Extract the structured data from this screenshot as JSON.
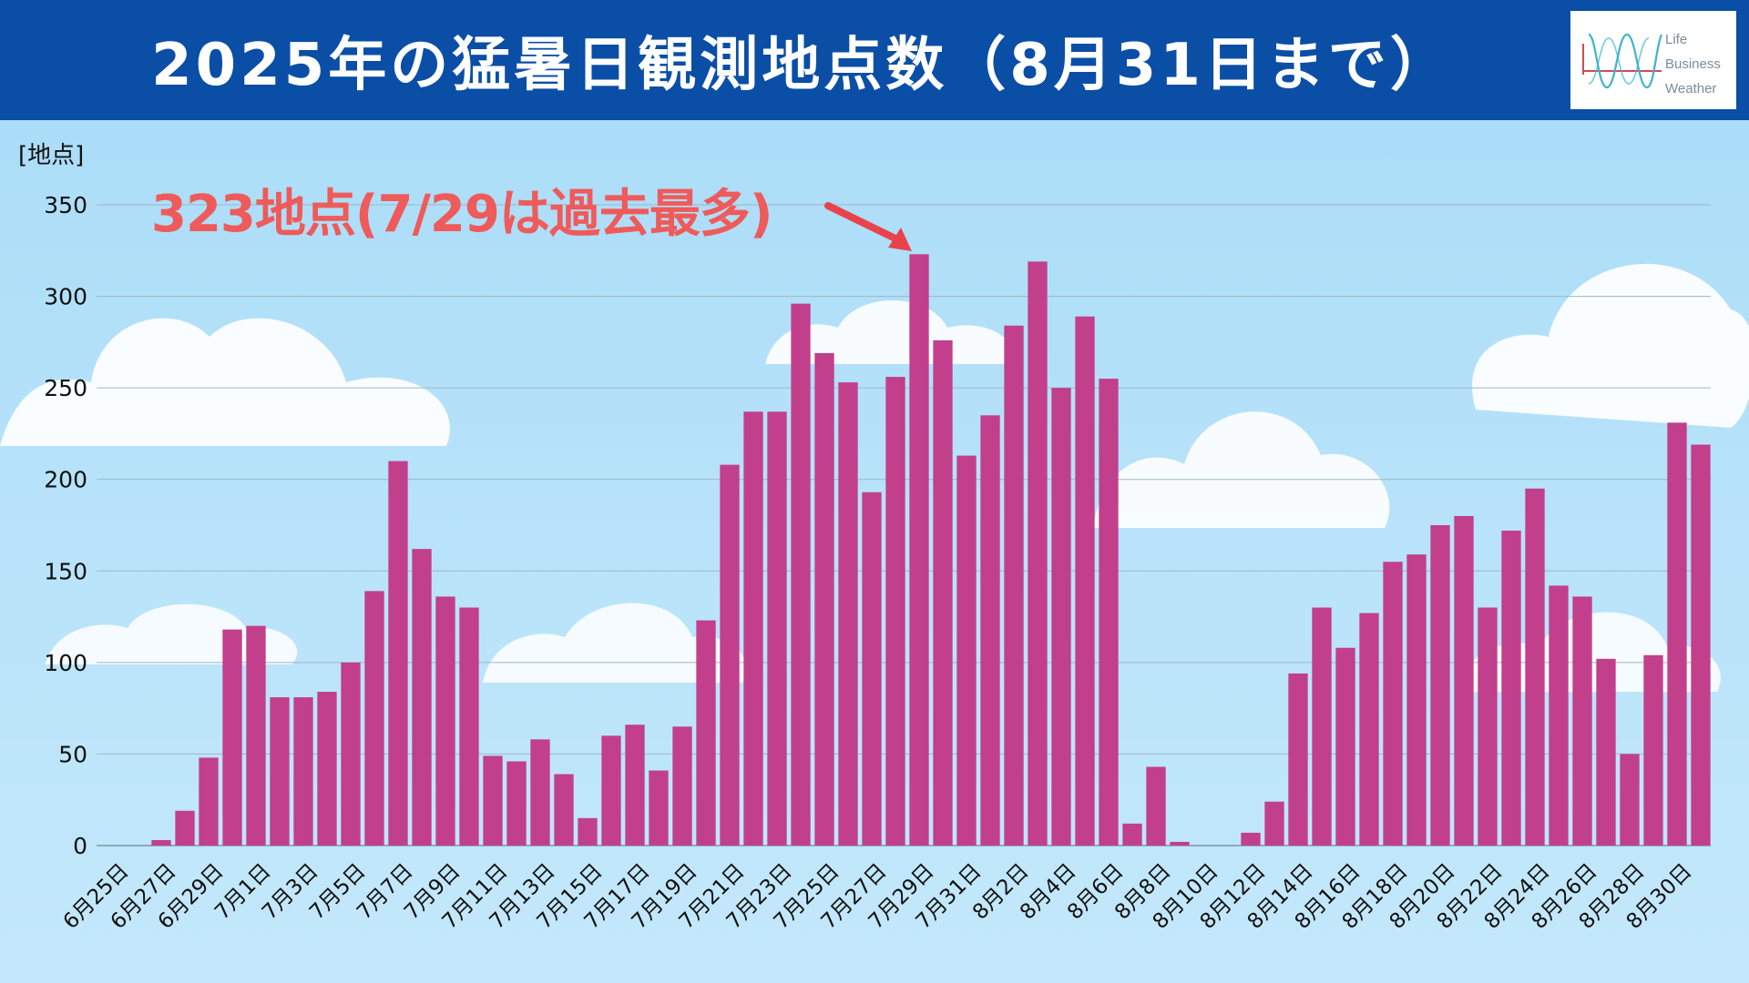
{
  "header": {
    "title": "2025年の猛暑日観測地点数（8月31日まで）",
    "background": "#0b4ea6"
  },
  "logo": {
    "lines": [
      "Life",
      "Business",
      "Weather"
    ]
  },
  "annotation": {
    "text": "323地点(7/29は過去最多)",
    "color": "#ef5a5a"
  },
  "chart_data": {
    "type": "bar",
    "unit_label": "[地点]",
    "bar_color": "#c23f8c",
    "ylim": [
      0,
      350
    ],
    "yticks": [
      0,
      50,
      100,
      150,
      200,
      250,
      300,
      350
    ],
    "grid": true,
    "categories": [
      "6月25日",
      "6月26日",
      "6月27日",
      "6月28日",
      "6月29日",
      "6月30日",
      "7月1日",
      "7月2日",
      "7月3日",
      "7月4日",
      "7月5日",
      "7月6日",
      "7月7日",
      "7月8日",
      "7月9日",
      "7月10日",
      "7月11日",
      "7月12日",
      "7月13日",
      "7月14日",
      "7月15日",
      "7月16日",
      "7月17日",
      "7月18日",
      "7月19日",
      "7月20日",
      "7月21日",
      "7月22日",
      "7月23日",
      "7月24日",
      "7月25日",
      "7月26日",
      "7月27日",
      "7月28日",
      "7月29日",
      "7月30日",
      "7月31日",
      "8月1日",
      "8月2日",
      "8月3日",
      "8月4日",
      "8月5日",
      "8月6日",
      "8月7日",
      "8月8日",
      "8月9日",
      "8月10日",
      "8月11日",
      "8月12日",
      "8月13日",
      "8月14日",
      "8月15日",
      "8月16日",
      "8月17日",
      "8月18日",
      "8月19日",
      "8月20日",
      "8月21日",
      "8月22日",
      "8月23日",
      "8月24日",
      "8月25日",
      "8月26日",
      "8月27日",
      "8月28日",
      "8月29日",
      "8月30日",
      "8月31日"
    ],
    "tick_labels": [
      "6月25日",
      "6月27日",
      "6月29日",
      "7月1日",
      "7月3日",
      "7月5日",
      "7月7日",
      "7月9日",
      "7月11日",
      "7月13日",
      "7月15日",
      "7月17日",
      "7月19日",
      "7月21日",
      "7月23日",
      "7月25日",
      "7月27日",
      "7月29日",
      "7月31日",
      "8月2日",
      "8月4日",
      "8月6日",
      "8月8日",
      "8月10日",
      "8月12日",
      "8月14日",
      "8月16日",
      "8月18日",
      "8月20日",
      "8月22日",
      "8月24日",
      "8月26日",
      "8月28日",
      "8月30日"
    ],
    "values": [
      0,
      0,
      3,
      19,
      48,
      118,
      120,
      81,
      81,
      84,
      100,
      139,
      210,
      162,
      136,
      130,
      49,
      46,
      58,
      39,
      15,
      60,
      66,
      41,
      65,
      123,
      208,
      237,
      237,
      296,
      269,
      253,
      193,
      256,
      323,
      276,
      213,
      235,
      284,
      319,
      250,
      289,
      255,
      12,
      43,
      2,
      0,
      0,
      7,
      24,
      94,
      130,
      108,
      127,
      155,
      159,
      175,
      180,
      130,
      172,
      195,
      142,
      136,
      102,
      50,
      104,
      231,
      219
    ]
  }
}
